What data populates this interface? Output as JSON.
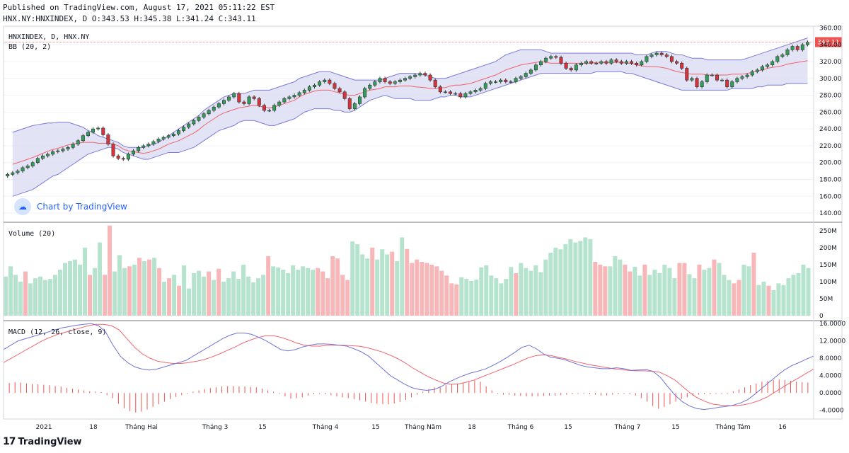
{
  "header": {
    "published": "Published on TradingView.com, August 17, 2021 05:11:22 EST",
    "ohlc": "HNX.NY:HNXINDEX, D O:343.53 H:345.38 L:341.24 C:343.11"
  },
  "footer": {
    "brand": "TradingView",
    "logo_glyph": "17"
  },
  "watermark": "Chart by TradingView",
  "colors": {
    "up": "#26a69a",
    "up_fill": "#2e9e58",
    "down": "#ef5350",
    "down_fill": "#d8323c",
    "band": "#7b7bd6",
    "band_fill": "#dcdcf4",
    "basis": "#f0626a",
    "macd": "#6f73d6",
    "signal": "#f06570",
    "vol_up": "#b6e3cd",
    "vol_down": "#f7b6b8",
    "hist": "#ef5350",
    "price_tag": "#ef5350"
  },
  "chart_data": [
    {
      "type": "candlestick",
      "title": "HNXINDEX, D, HNX.NY",
      "indicator_label": "BB (20, 2)",
      "ylim": [
        130,
        362
      ],
      "y_ticks": [
        "360.00",
        "340.00",
        "320.00",
        "300.00",
        "280.00",
        "260.00",
        "240.00",
        "220.00",
        "200.00",
        "180.00",
        "160.00",
        "140.00"
      ],
      "last_price": "343.11",
      "close": [
        186,
        188,
        190,
        194,
        196,
        200,
        205,
        208,
        210,
        213,
        214,
        216,
        218,
        222,
        226,
        232,
        236,
        240,
        241,
        233,
        222,
        208,
        205,
        204,
        210,
        214,
        218,
        220,
        222,
        225,
        228,
        230,
        232,
        234,
        238,
        242,
        246,
        250,
        254,
        258,
        262,
        266,
        270,
        274,
        278,
        282,
        272,
        270,
        278,
        276,
        268,
        262,
        262,
        268,
        272,
        276,
        278,
        280,
        283,
        286,
        290,
        292,
        296,
        298,
        294,
        288,
        284,
        276,
        264,
        270,
        278,
        288,
        292,
        296,
        300,
        296,
        294,
        296,
        298,
        300,
        302,
        304,
        306,
        304,
        298,
        290,
        284,
        284,
        282,
        282,
        278,
        282,
        284,
        286,
        288,
        294,
        296,
        296,
        298,
        296,
        296,
        300,
        302,
        306,
        310,
        316,
        320,
        324,
        326,
        325,
        318,
        312,
        310,
        316,
        318,
        320,
        318,
        318,
        320,
        318,
        322,
        320,
        318,
        320,
        318,
        316,
        320,
        326,
        328,
        330,
        328,
        326,
        320,
        318,
        312,
        298,
        300,
        290,
        296,
        304,
        304,
        298,
        298,
        290,
        296,
        300,
        302,
        304,
        308,
        310,
        314,
        316,
        320,
        326,
        328,
        334,
        338,
        334,
        340,
        343
      ],
      "bb_upper": [
        236,
        238,
        240,
        242,
        244,
        245,
        246,
        247,
        247,
        248,
        248,
        248,
        246,
        244,
        242,
        238,
        236,
        232,
        230,
        228,
        226,
        224,
        220,
        218,
        218,
        218,
        218,
        220,
        222,
        224,
        228,
        232,
        236,
        240,
        244,
        248,
        252,
        256,
        262,
        266,
        270,
        274,
        278,
        280,
        282,
        282,
        282,
        284,
        286,
        286,
        286,
        286,
        288,
        290,
        292,
        294,
        296,
        300,
        302,
        304,
        306,
        308,
        308,
        308,
        306,
        304,
        302,
        300,
        298,
        298,
        298,
        298,
        298,
        298,
        300,
        302,
        304,
        306,
        306,
        306,
        306,
        305,
        304,
        302,
        300,
        300,
        300,
        302,
        304,
        306,
        308,
        310,
        312,
        314,
        316,
        318,
        320,
        324,
        328,
        330,
        332,
        334,
        334,
        334,
        334,
        334,
        332,
        330,
        330,
        330,
        330,
        330,
        330,
        330,
        330,
        330,
        330,
        330,
        330,
        330,
        330,
        330,
        330,
        330,
        328,
        328,
        328,
        330,
        332,
        332,
        332,
        330,
        328,
        328,
        326,
        324,
        324,
        324,
        322,
        322,
        322,
        322,
        322,
        322,
        322,
        322,
        324,
        326,
        328,
        330,
        332,
        334,
        336,
        338,
        340,
        342,
        344,
        346,
        348
      ],
      "bb_lower": [
        160,
        162,
        164,
        166,
        168,
        172,
        176,
        180,
        184,
        186,
        190,
        194,
        198,
        202,
        206,
        210,
        212,
        214,
        216,
        218,
        218,
        216,
        212,
        210,
        208,
        206,
        204,
        204,
        206,
        208,
        210,
        212,
        212,
        212,
        214,
        216,
        218,
        222,
        226,
        230,
        234,
        238,
        240,
        242,
        244,
        248,
        250,
        250,
        250,
        248,
        246,
        244,
        244,
        246,
        248,
        250,
        252,
        256,
        260,
        262,
        264,
        264,
        264,
        264,
        262,
        262,
        260,
        260,
        262,
        266,
        270,
        274,
        276,
        278,
        280,
        278,
        276,
        276,
        276,
        276,
        274,
        274,
        274,
        274,
        276,
        278,
        278,
        280,
        280,
        278,
        278,
        278,
        280,
        282,
        284,
        286,
        288,
        290,
        292,
        294,
        296,
        298,
        300,
        302,
        304,
        306,
        306,
        306,
        306,
        306,
        306,
        306,
        306,
        306,
        306,
        306,
        308,
        308,
        308,
        308,
        308,
        308,
        306,
        306,
        304,
        302,
        300,
        298,
        296,
        294,
        292,
        290,
        288,
        286,
        286,
        286,
        286,
        286,
        286,
        286,
        286,
        286,
        286,
        288,
        288,
        288,
        288,
        288,
        290,
        290,
        292,
        292,
        292,
        292,
        294,
        294,
        294,
        294,
        294
      ],
      "xaxis_labels": [
        "2021",
        "18",
        "Tháng Hai",
        "Tháng 3",
        "15",
        "Tháng 4",
        "15",
        "Tháng Năm",
        "18",
        "Tháng 6",
        "15",
        "Tháng 7",
        "15",
        "Tháng Tám",
        "16"
      ]
    },
    {
      "type": "bar",
      "title": "Volume (20)",
      "ylim": [
        0,
        260
      ],
      "y_ticks": [
        "250M",
        "200M",
        "150M",
        "100M",
        "50M",
        "0"
      ],
      "values": [
        115,
        145,
        120,
        100,
        130,
        95,
        110,
        115,
        105,
        108,
        120,
        135,
        155,
        160,
        165,
        150,
        200,
        120,
        140,
        215,
        120,
        265,
        130,
        178,
        140,
        145,
        150,
        170,
        160,
        165,
        170,
        140,
        100,
        110,
        120,
        88,
        148,
        80,
        125,
        132,
        115,
        130,
        105,
        138,
        100,
        110,
        130,
        108,
        150,
        115,
        98,
        110,
        120,
        175,
        145,
        142,
        135,
        125,
        148,
        135,
        145,
        140,
        135,
        140,
        130,
        110,
        175,
        168,
        120,
        105,
        218,
        210,
        180,
        168,
        200,
        165,
        195,
        180,
        188,
        160,
        230,
        196,
        155,
        165,
        158,
        155,
        150,
        145,
        132,
        118,
        95,
        92,
        113,
        108,
        102,
        106,
        142,
        148,
        118,
        110,
        95,
        108,
        143,
        125,
        155,
        140,
        132,
        148,
        128,
        165,
        185,
        200,
        195,
        210,
        225,
        215,
        220,
        230,
        225,
        158,
        150,
        145,
        145,
        175,
        165,
        150,
        130,
        144,
        118,
        150,
        120,
        135,
        125,
        150,
        140,
        110,
        155,
        155,
        122,
        110,
        150,
        135,
        140,
        165,
        155,
        120,
        105,
        95,
        105,
        150,
        145,
        185,
        90,
        100,
        88,
        75,
        95,
        90,
        110,
        120,
        125,
        150,
        140
      ],
      "up_flags": [
        1,
        1,
        1,
        1,
        0,
        1,
        1,
        1,
        1,
        1,
        1,
        1,
        1,
        1,
        1,
        1,
        1,
        0,
        1,
        1,
        0,
        0,
        1,
        1,
        1,
        0,
        1,
        0,
        1,
        0,
        1,
        0,
        1,
        0,
        1,
        0,
        1,
        1,
        1,
        1,
        1,
        0,
        1,
        0,
        1,
        1,
        1,
        1,
        1,
        1,
        1,
        1,
        1,
        0,
        1,
        1,
        1,
        1,
        1,
        1,
        1,
        1,
        1,
        0,
        0,
        0,
        0,
        0,
        0,
        0,
        1,
        1,
        1,
        1,
        0,
        1,
        1,
        1,
        0,
        1,
        1,
        0,
        0,
        0,
        0,
        0,
        0,
        0,
        0,
        0,
        0,
        0,
        1,
        1,
        1,
        1,
        1,
        1,
        1,
        1,
        1,
        1,
        1,
        0,
        1,
        1,
        1,
        1,
        1,
        1,
        1,
        1,
        1,
        1,
        1,
        1,
        1,
        1,
        1,
        0,
        0,
        0,
        1,
        1,
        1,
        0,
        0,
        1,
        1,
        0,
        1,
        1,
        1,
        1,
        1,
        1,
        0,
        0,
        1,
        1,
        0,
        1,
        1,
        0,
        1,
        1,
        1,
        0,
        0,
        1,
        1,
        0,
        1,
        1,
        0,
        1,
        1,
        1,
        1,
        1,
        1,
        1,
        1,
        0,
        1,
        0,
        1,
        1,
        0
      ]
    },
    {
      "type": "line",
      "title": "MACD (12, 26, close, 9)",
      "ylim": [
        -6,
        16.5
      ],
      "y_ticks": [
        "16.0000",
        "12.0000",
        "8.0000",
        "4.0000",
        "0.0000",
        "-4.0000"
      ],
      "macd": [
        10,
        11,
        12,
        12.5,
        13,
        13.5,
        14,
        14.5,
        15,
        15.3,
        15.6,
        15.8,
        16,
        15.5,
        14,
        11,
        8.5,
        7,
        6,
        5.5,
        5.3,
        5.5,
        6,
        6.5,
        7,
        7.5,
        8.5,
        9.5,
        10.5,
        11.5,
        12.5,
        13.3,
        13.8,
        13.8,
        13.5,
        12.8,
        12,
        11,
        10,
        9.7,
        10,
        10.6,
        11,
        11.3,
        11.3,
        11.2,
        11,
        10.8,
        10.2,
        9.5,
        8.5,
        7,
        5.5,
        4,
        3,
        2,
        1.2,
        0.8,
        0.6,
        0.8,
        1.5,
        2.5,
        3.3,
        4,
        4.6,
        5,
        5.5,
        6.3,
        7.2,
        8.2,
        9.3,
        10.5,
        11,
        10.2,
        9,
        8.2,
        8,
        7.6,
        7,
        6.4,
        6,
        5.8,
        5.6,
        5.6,
        5.8,
        5.6,
        5.2,
        5.3,
        5.4,
        5,
        3.6,
        1.5,
        -0.5,
        -2,
        -3,
        -3.6,
        -3.8,
        -3.6,
        -3.3,
        -3.1,
        -2.8,
        -2.3,
        -1.5,
        -0.2,
        1.2,
        2.6,
        4,
        5.3,
        6.3,
        7,
        7.8,
        8.5
      ],
      "signal": [
        7,
        8,
        9,
        10,
        11,
        12,
        12.8,
        13.5,
        14,
        14.5,
        15,
        15.5,
        15.8,
        15.8,
        15.5,
        14.5,
        12.5,
        10.5,
        9,
        8,
        7.3,
        7,
        6.8,
        6.8,
        7,
        7.3,
        7.7,
        8.3,
        9,
        9.8,
        10.6,
        11.5,
        12.2,
        12.8,
        13.2,
        13.2,
        12.8,
        12.2,
        11.5,
        11,
        10.8,
        10.8,
        11,
        11,
        11,
        10.9,
        10.8,
        10.5,
        10,
        9.5,
        8.8,
        8,
        7,
        5.8,
        4.8,
        3.8,
        3,
        2.3,
        2,
        2.1,
        2.5,
        3,
        3.7,
        4.4,
        5.1,
        5.8,
        6.5,
        7.3,
        8.1,
        8.6,
        8.8,
        8.6,
        8.2,
        7.8,
        7.3,
        6.9,
        6.5,
        6.2,
        5.9,
        5.6,
        5.4,
        5.2,
        5.1,
        5.1,
        5,
        4.8,
        4,
        3,
        1.5,
        0,
        -1.2,
        -2,
        -2.6,
        -2.8,
        -2.9,
        -2.9,
        -2.7,
        -2.3,
        -1.7,
        -0.9,
        0.2,
        1.3,
        2.4,
        3.4,
        4.5,
        5.5
      ],
      "hist": [
        2.3,
        2.5,
        2.4,
        2.2,
        2.1,
        2,
        1.9,
        1.8,
        1.6,
        1.5,
        1.2,
        1.0,
        0.8,
        0.6,
        0.4,
        0.3,
        0.2,
        -0.5,
        -1.2,
        -2.5,
        -3.5,
        -4.2,
        -4.5,
        -4.3,
        -3.8,
        -3.2,
        -2.6,
        -2,
        -1.4,
        -0.9,
        -0.5,
        -0.2,
        0.3,
        0.6,
        0.9,
        1.1,
        1.3,
        1.5,
        1.6,
        1.6,
        1.5,
        1.5,
        1.4,
        1.3,
        1.0,
        0.6,
        0.3,
        -0.2,
        -0.8,
        -1.3,
        -1.2,
        -1.0,
        -0.6,
        -0.3,
        -0.2,
        -0.3,
        -0.5,
        -0.8,
        -1.0,
        -1.2,
        -1.4,
        -1.7,
        -2,
        -2.3,
        -2.5,
        -2.6,
        -2.6,
        -2.4,
        -2.1,
        -1.6,
        -1.0,
        -0.4,
        0.3,
        0.9,
        1.3,
        1.5,
        1.8,
        2,
        2.2,
        2.3,
        2.6,
        2.9,
        2.6,
        1.5,
        0.6,
        -0.2,
        -0.4,
        -0.4,
        -0.6,
        -0.7,
        -0.8,
        -0.8,
        -0.8,
        -0.7,
        -0.6,
        -0.6,
        -0.5,
        -0.4,
        -0.3,
        -0.2,
        -0.2,
        -0.3,
        -0.4,
        -0.6,
        -0.6,
        -0.4,
        -0.3,
        -0.2,
        -0.3,
        -0.6,
        -1.2,
        -2,
        -3,
        -3.6,
        -3.2,
        -2.6,
        -2,
        -1.4,
        -1,
        -0.6,
        -0.4,
        -0.3,
        -0.3,
        -0.2,
        -0.2,
        -0.2,
        0.4,
        0.8,
        1.3,
        1.8,
        2.2,
        2.6,
        2.8,
        3,
        3.1,
        3,
        2.8,
        2.6,
        2.5,
        2.4
      ]
    }
  ]
}
